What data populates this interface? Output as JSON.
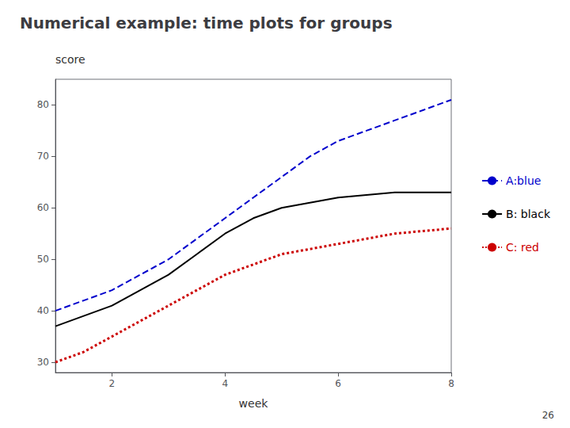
{
  "chart_data": {
    "type": "line",
    "title": "Numerical example: time plots for groups",
    "x_label": "week",
    "y_label": "score",
    "x": [
      1,
      1.5,
      2,
      2.5,
      3,
      3.5,
      4,
      4.5,
      5,
      5.5,
      6,
      6.5,
      7,
      7.5,
      8
    ],
    "series": [
      {
        "name": "A:blue",
        "color": "#0000CC",
        "line_style": "dashed",
        "values": [
          40,
          42,
          44,
          47,
          50,
          54,
          58,
          62,
          66,
          70,
          73,
          75,
          77,
          79,
          81
        ]
      },
      {
        "name": "B: black",
        "color": "#000000",
        "line_style": "solid",
        "values": [
          37,
          39,
          41,
          44,
          47,
          51,
          55,
          58,
          60,
          61,
          62,
          62.5,
          63,
          63,
          63
        ]
      },
      {
        "name": "C: red",
        "color": "#CC0000",
        "line_style": "dotted",
        "values": [
          30,
          32,
          35,
          38,
          41,
          44,
          47,
          49,
          51,
          52,
          53,
          54,
          55,
          55.5,
          56
        ]
      }
    ],
    "xlim": [
      1,
      8
    ],
    "xticks": [
      2,
      4,
      6,
      8
    ],
    "ylim": [
      28,
      85
    ],
    "yticks": [
      30,
      40,
      50,
      60,
      70,
      80
    ],
    "grid": false,
    "legend": "right",
    "annotations": [
      "26"
    ]
  }
}
